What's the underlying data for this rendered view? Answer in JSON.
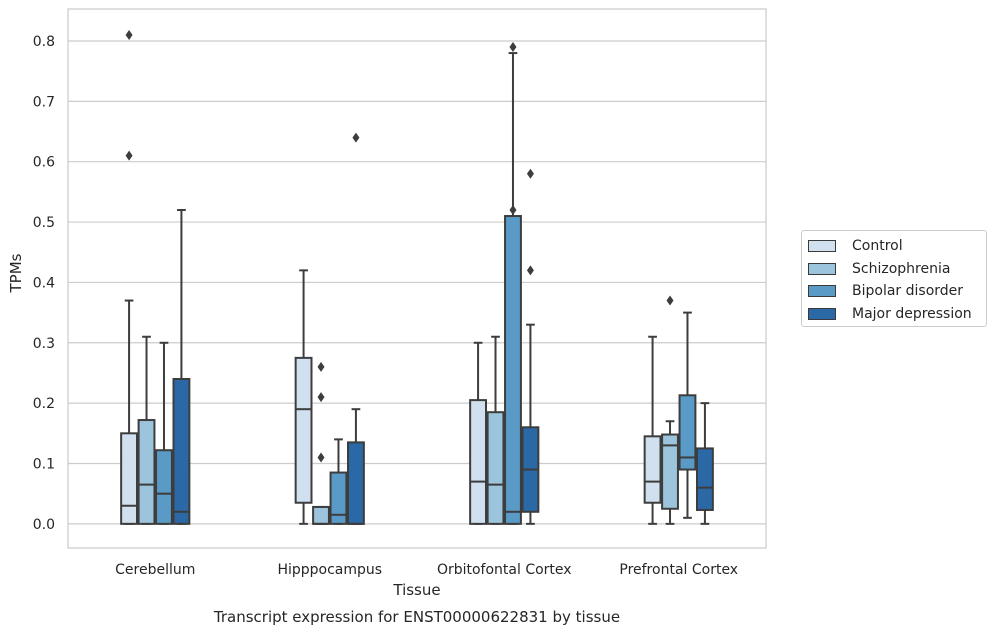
{
  "chart_data": {
    "type": "box",
    "title": "Transcript expression for ENST00000622831 by tissue",
    "xlabel": "Tissue",
    "ylabel": "TPMs",
    "ylim": [
      -0.04,
      0.853
    ],
    "yticks": [
      "0.0",
      "0.1",
      "0.2",
      "0.3",
      "0.4",
      "0.5",
      "0.6",
      "0.7",
      "0.8"
    ],
    "grid": "horizontal",
    "legend_position": "right",
    "categories": [
      "Cerebellum",
      "Hipppocampus",
      "Orbitofontal Cortex",
      "Prefrontal Cortex"
    ],
    "series": [
      {
        "name": "Control",
        "color": "#d0e0ef",
        "boxes": [
          {
            "whisker_low": 0.0,
            "q1": 0.0,
            "median": 0.03,
            "q3": 0.15,
            "whisker_high": 0.37,
            "outliers": [
              0.81,
              0.61
            ]
          },
          {
            "whisker_low": 0.0,
            "q1": 0.035,
            "median": 0.19,
            "q3": 0.275,
            "whisker_high": 0.42,
            "outliers": []
          },
          {
            "whisker_low": 0.0,
            "q1": 0.0,
            "median": 0.07,
            "q3": 0.205,
            "whisker_high": 0.3,
            "outliers": []
          },
          {
            "whisker_low": 0.0,
            "q1": 0.035,
            "median": 0.07,
            "q3": 0.145,
            "whisker_high": 0.31,
            "outliers": []
          }
        ]
      },
      {
        "name": "Schizophrenia",
        "color": "#9cc4dc",
        "boxes": [
          {
            "whisker_low": 0.0,
            "q1": 0.0,
            "median": 0.065,
            "q3": 0.172,
            "whisker_high": 0.31,
            "outliers": []
          },
          {
            "whisker_low": 0.0,
            "q1": 0.0,
            "median": 0.0,
            "q3": 0.028,
            "whisker_high": 0.028,
            "outliers": [
              0.26,
              0.21,
              0.11
            ]
          },
          {
            "whisker_low": 0.0,
            "q1": 0.0,
            "median": 0.065,
            "q3": 0.185,
            "whisker_high": 0.31,
            "outliers": []
          },
          {
            "whisker_low": 0.0,
            "q1": 0.025,
            "median": 0.13,
            "q3": 0.148,
            "whisker_high": 0.17,
            "outliers": [
              0.37
            ]
          }
        ]
      },
      {
        "name": "Bipolar disorder",
        "color": "#5a9ac6",
        "boxes": [
          {
            "whisker_low": 0.0,
            "q1": 0.0,
            "median": 0.05,
            "q3": 0.122,
            "whisker_high": 0.3,
            "outliers": []
          },
          {
            "whisker_low": 0.0,
            "q1": 0.0,
            "median": 0.015,
            "q3": 0.085,
            "whisker_high": 0.14,
            "outliers": []
          },
          {
            "whisker_low": 0.0,
            "q1": 0.0,
            "median": 0.02,
            "q3": 0.51,
            "whisker_high": 0.78,
            "outliers": [
              0.79,
              0.52
            ]
          },
          {
            "whisker_low": 0.01,
            "q1": 0.09,
            "median": 0.11,
            "q3": 0.213,
            "whisker_high": 0.35,
            "outliers": []
          }
        ]
      },
      {
        "name": "Major depression",
        "color": "#2a68a6",
        "boxes": [
          {
            "whisker_low": 0.0,
            "q1": 0.0,
            "median": 0.02,
            "q3": 0.24,
            "whisker_high": 0.52,
            "outliers": []
          },
          {
            "whisker_low": 0.0,
            "q1": 0.0,
            "median": 0.0,
            "q3": 0.135,
            "whisker_high": 0.19,
            "outliers": [
              0.64
            ]
          },
          {
            "whisker_low": 0.0,
            "q1": 0.02,
            "median": 0.09,
            "q3": 0.16,
            "whisker_high": 0.33,
            "outliers": [
              0.58,
              0.42
            ]
          },
          {
            "whisker_low": 0.0,
            "q1": 0.023,
            "median": 0.06,
            "q3": 0.125,
            "whisker_high": 0.2,
            "outliers": []
          }
        ]
      }
    ]
  }
}
